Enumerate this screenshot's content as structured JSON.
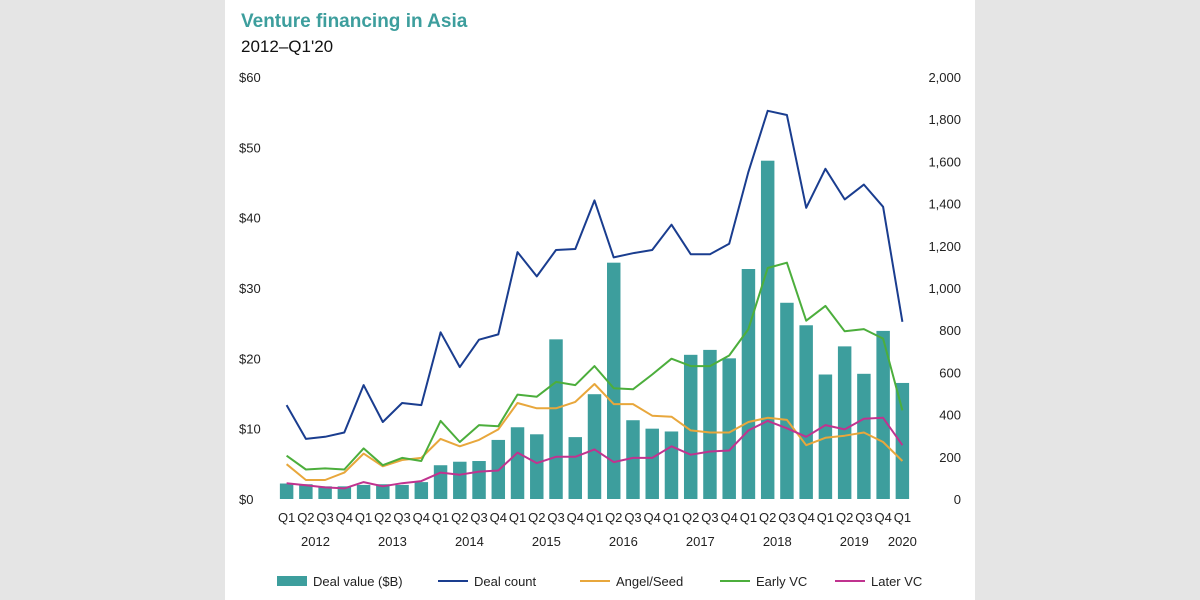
{
  "colors": {
    "page_background": "#e5e5e5",
    "bar": "#3d9e9d",
    "deal_count": "#1a3d8f",
    "angel_seed": "#e8a73c",
    "early_vc": "#4cae3c",
    "later_vc": "#c0338f",
    "title": "#3d9e9d"
  },
  "chart_data": {
    "type": "bar",
    "title": "Venture financing in Asia",
    "subtitle": "2012–Q1'20",
    "categories": [
      "Q1",
      "Q2",
      "Q3",
      "Q4",
      "Q1",
      "Q2",
      "Q3",
      "Q4",
      "Q1",
      "Q2",
      "Q3",
      "Q4",
      "Q1",
      "Q2",
      "Q3",
      "Q4",
      "Q1",
      "Q2",
      "Q3",
      "Q4",
      "Q1",
      "Q2",
      "Q3",
      "Q4",
      "Q1",
      "Q2",
      "Q3",
      "Q4",
      "Q1",
      "Q2",
      "Q3",
      "Q4",
      "Q1"
    ],
    "year_labels": [
      {
        "label": "2012",
        "center_index": 1.5
      },
      {
        "label": "2013",
        "center_index": 5.5
      },
      {
        "label": "2014",
        "center_index": 9.5
      },
      {
        "label": "2015",
        "center_index": 13.5
      },
      {
        "label": "2016",
        "center_index": 17.5
      },
      {
        "label": "2017",
        "center_index": 21.5
      },
      {
        "label": "2018",
        "center_index": 25.5
      },
      {
        "label": "2019",
        "center_index": 29.5
      },
      {
        "label": "2020",
        "center_index": 32
      }
    ],
    "y_left": {
      "min": 0,
      "max": 60,
      "ticks": [
        0,
        10,
        20,
        30,
        40,
        50,
        60
      ],
      "tick_labels": [
        "$0",
        "$10",
        "$20",
        "$30",
        "$40",
        "$50",
        "$60"
      ]
    },
    "y_right": {
      "min": 0,
      "max": 2000,
      "ticks": [
        0,
        200,
        400,
        600,
        800,
        1000,
        1200,
        1400,
        1600,
        1800,
        2000
      ],
      "tick_labels": [
        "0",
        "200",
        "400",
        "600",
        "800",
        "1,000",
        "1,200",
        "1,400",
        "1,600",
        "1,800",
        "2,000"
      ]
    },
    "bar_series": {
      "name": "Deal value ($B)",
      "axis": "left",
      "values": [
        2.2,
        2.1,
        1.8,
        1.8,
        2.0,
        2.1,
        2.0,
        2.4,
        4.8,
        5.3,
        5.4,
        8.4,
        10.2,
        9.2,
        22.7,
        8.8,
        14.9,
        33.6,
        11.2,
        10.0,
        9.6,
        20.5,
        21.2,
        20.0,
        32.7,
        48.1,
        27.9,
        24.7,
        17.7,
        21.7,
        17.8,
        23.9,
        16.5
      ]
    },
    "line_series": [
      {
        "name": "Deal count",
        "axis": "right",
        "color_key": "deal_count",
        "values": [
          445,
          285,
          295,
          315,
          540,
          365,
          455,
          445,
          790,
          625,
          755,
          780,
          1170,
          1055,
          1180,
          1185,
          1415,
          1145,
          1165,
          1180,
          1300,
          1160,
          1160,
          1210,
          1550,
          1840,
          1820,
          1380,
          1565,
          1420,
          1490,
          1385,
          840
        ]
      },
      {
        "name": "Angel/Seed",
        "axis": "right",
        "color_key": "angel_seed",
        "values": [
          165,
          90,
          90,
          125,
          215,
          155,
          185,
          195,
          285,
          250,
          280,
          330,
          455,
          430,
          430,
          460,
          545,
          450,
          450,
          395,
          390,
          325,
          315,
          315,
          365,
          385,
          375,
          255,
          290,
          300,
          315,
          270,
          180
        ]
      },
      {
        "name": "Early VC",
        "axis": "right",
        "color_key": "early_vc",
        "values": [
          205,
          140,
          145,
          140,
          240,
          160,
          195,
          180,
          370,
          270,
          350,
          345,
          495,
          485,
          555,
          540,
          630,
          525,
          520,
          590,
          665,
          630,
          630,
          680,
          805,
          1095,
          1120,
          845,
          915,
          795,
          805,
          760,
          420
        ]
      },
      {
        "name": "Later VC",
        "axis": "right",
        "color_key": "later_vc",
        "values": [
          75,
          65,
          55,
          50,
          80,
          60,
          75,
          85,
          125,
          115,
          130,
          135,
          220,
          170,
          200,
          200,
          235,
          175,
          195,
          195,
          250,
          210,
          225,
          230,
          325,
          370,
          335,
          295,
          350,
          330,
          380,
          385,
          255
        ]
      }
    ],
    "legend": [
      {
        "label": "Deal value ($B)",
        "kind": "bar",
        "color_key": "bar"
      },
      {
        "label": "Deal count",
        "kind": "line",
        "color_key": "deal_count"
      },
      {
        "label": "Angel/Seed",
        "kind": "line",
        "color_key": "angel_seed"
      },
      {
        "label": "Early VC",
        "kind": "line",
        "color_key": "early_vc"
      },
      {
        "label": "Later VC",
        "kind": "line",
        "color_key": "later_vc"
      }
    ],
    "legend_position": "bottom",
    "grid": false
  }
}
